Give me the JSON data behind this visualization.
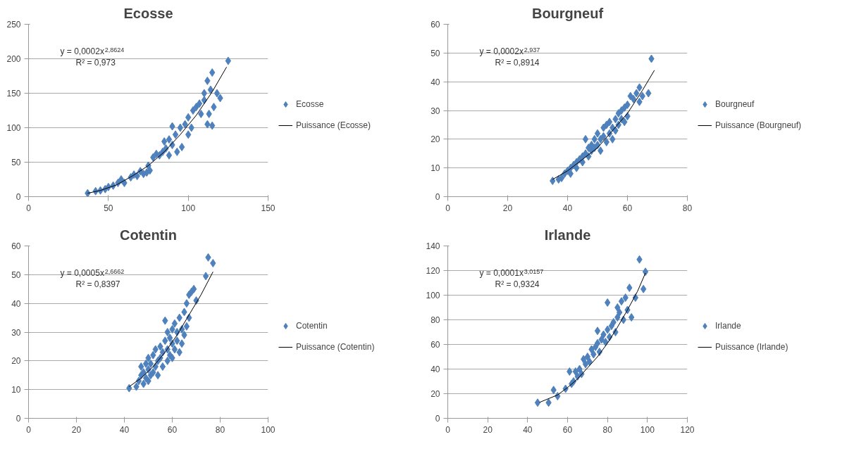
{
  "chart_data": [
    {
      "type": "scatter",
      "title": "Ecosse",
      "xlim": [
        0,
        150
      ],
      "xticks": [
        0,
        50,
        100,
        150
      ],
      "ylim": [
        0,
        250
      ],
      "yticks": [
        0,
        50,
        100,
        150,
        200,
        250
      ],
      "grid": "y",
      "legend": "right",
      "annotations": [
        "y = 0,0002x$^{2,8624}$",
        "R² = 0,973"
      ],
      "series": [
        {
          "name": "Ecosse",
          "color": "#4f81bd",
          "marker": "diamond",
          "x": [
            37,
            42,
            45,
            48,
            50,
            53,
            56,
            58,
            60,
            64,
            66,
            68,
            70,
            72,
            74,
            75,
            76,
            78,
            80,
            82,
            84,
            85,
            86,
            88,
            88,
            90,
            90,
            92,
            93,
            95,
            96,
            98,
            100,
            100,
            102,
            103,
            105,
            107,
            108,
            110,
            110,
            112,
            112,
            113,
            114,
            115,
            115,
            116,
            118,
            120,
            125
          ],
          "values": [
            5,
            8,
            9,
            11,
            14,
            16,
            20,
            25,
            20,
            28,
            32,
            30,
            37,
            33,
            35,
            45,
            38,
            57,
            62,
            60,
            65,
            80,
            70,
            83,
            60,
            102,
            75,
            90,
            65,
            100,
            72,
            105,
            115,
            90,
            100,
            125,
            130,
            135,
            120,
            150,
            140,
            168,
            105,
            120,
            155,
            180,
            103,
            130,
            150,
            143,
            197
          ]
        },
        {
          "name": "Puissance (Ecosse)",
          "type": "line",
          "color": "#000000",
          "marker": "none",
          "x": [
            37,
            45,
            55,
            65,
            75,
            85,
            95,
            105,
            115,
            124
          ],
          "values": [
            5,
            9,
            17,
            30,
            45,
            65,
            90,
            118,
            152,
            188
          ]
        }
      ]
    },
    {
      "type": "scatter",
      "title": "Bourgneuf",
      "xlim": [
        0,
        80
      ],
      "xticks": [
        0,
        20,
        40,
        60,
        80
      ],
      "ylim": [
        0,
        60
      ],
      "yticks": [
        0,
        10,
        20,
        30,
        40,
        50,
        60
      ],
      "grid": "y",
      "legend": "right",
      "annotations": [
        "y = 0,0002x$^{2,937}$",
        "R² = 0,8914"
      ],
      "series": [
        {
          "name": "Bourgneuf",
          "color": "#4f81bd",
          "marker": "diamond",
          "x": [
            35,
            37,
            38,
            39,
            40,
            41,
            41,
            42,
            43,
            43,
            44,
            45,
            45,
            46,
            46,
            47,
            47,
            48,
            48,
            49,
            49,
            50,
            50,
            51,
            51,
            52,
            52,
            53,
            53,
            54,
            54,
            55,
            55,
            56,
            56,
            57,
            57,
            58,
            58,
            59,
            59,
            60,
            60,
            61,
            62,
            63,
            64,
            64,
            65,
            67,
            68
          ],
          "values": [
            5.5,
            6,
            6.5,
            8,
            9,
            8,
            10,
            11,
            12,
            10,
            13,
            12,
            14,
            20,
            15,
            14,
            17,
            16,
            18,
            17,
            20,
            18,
            22,
            20,
            16,
            21,
            24,
            19,
            25,
            22,
            26,
            24,
            20,
            27,
            23,
            25,
            29,
            27,
            30,
            26,
            31,
            28,
            32,
            35,
            34,
            36,
            38,
            33,
            35,
            36,
            48
          ]
        },
        {
          "name": "Puissance (Bourgneuf)",
          "type": "line",
          "color": "#000000",
          "marker": "none",
          "x": [
            35,
            40,
            45,
            50,
            55,
            60,
            65,
            69
          ],
          "values": [
            6,
            9,
            13,
            17,
            23,
            29,
            37,
            44
          ]
        }
      ]
    },
    {
      "type": "scatter",
      "title": "Cotentin",
      "xlim": [
        0,
        100
      ],
      "xticks": [
        0,
        20,
        40,
        60,
        80,
        100
      ],
      "ylim": [
        0,
        60
      ],
      "yticks": [
        0,
        10,
        20,
        30,
        40,
        50,
        60
      ],
      "grid": "y",
      "legend": "right",
      "annotations": [
        "y = 0,0005x$^{2,6662}$",
        "R² = 0,8397"
      ],
      "series": [
        {
          "name": "Cotentin",
          "color": "#4f81bd",
          "marker": "diamond",
          "x": [
            42,
            45,
            46,
            47,
            47,
            48,
            48,
            49,
            49,
            50,
            50,
            50,
            51,
            51,
            52,
            52,
            53,
            53,
            54,
            54,
            55,
            55,
            56,
            56,
            57,
            57,
            58,
            58,
            58,
            59,
            59,
            60,
            60,
            60,
            61,
            61,
            62,
            62,
            63,
            63,
            64,
            64,
            65,
            65,
            66,
            66,
            67,
            67,
            68,
            69,
            70,
            74,
            75,
            77
          ],
          "values": [
            10.5,
            11,
            13,
            15,
            18,
            12,
            16,
            14,
            19,
            13,
            17,
            21,
            15,
            19,
            16,
            22,
            18,
            24,
            15,
            20,
            21,
            25,
            18,
            23,
            27,
            34,
            20,
            24,
            30,
            22,
            28,
            21,
            26,
            31,
            24,
            33,
            27,
            30,
            23,
            35,
            26,
            31,
            29,
            37,
            32,
            40,
            35,
            43,
            44,
            45,
            41,
            49.5,
            56,
            54
          ]
        },
        {
          "name": "Puissance (Cotentin)",
          "type": "line",
          "color": "#000000",
          "marker": "none",
          "x": [
            42,
            47,
            52,
            57,
            62,
            67,
            72,
            77
          ],
          "values": [
            11,
            14,
            18,
            23,
            29,
            36,
            43,
            51
          ]
        }
      ]
    },
    {
      "type": "scatter",
      "title": "Irlande",
      "xlim": [
        0,
        120
      ],
      "xticks": [
        0,
        20,
        40,
        60,
        80,
        100,
        120
      ],
      "ylim": [
        0,
        140
      ],
      "yticks": [
        0,
        20,
        40,
        60,
        80,
        100,
        120,
        140
      ],
      "grid": "y",
      "legend": "right",
      "annotations": [
        "y = 0,0001x$^{3,0157}$",
        "R² = 0,9324"
      ],
      "series": [
        {
          "name": "Irlande",
          "color": "#4f81bd",
          "marker": "diamond",
          "x": [
            45,
            50.5,
            53,
            55,
            59,
            61,
            62,
            63,
            64,
            65,
            66,
            67,
            68,
            69,
            70,
            71,
            72,
            73,
            74,
            75,
            75,
            76,
            77,
            78,
            79,
            80,
            80,
            81,
            82,
            83,
            84,
            85,
            85,
            86,
            87,
            88,
            89,
            90,
            91,
            92,
            94,
            96,
            98,
            99
          ],
          "values": [
            12.7,
            12.7,
            23,
            18,
            24,
            38,
            28,
            30,
            38,
            34,
            40,
            36,
            48,
            44,
            50,
            46,
            56,
            52,
            58,
            61,
            71,
            54,
            64,
            68,
            62,
            72,
            94,
            66,
            75,
            78,
            70,
            82,
            90,
            86,
            95,
            80,
            98,
            88,
            106,
            82,
            98,
            129,
            105,
            119
          ]
        },
        {
          "name": "Puissance (Irlande)",
          "type": "line",
          "color": "#000000",
          "marker": "none",
          "x": [
            46,
            55,
            60,
            65,
            70,
            75,
            80,
            85,
            90,
            95,
            99
          ],
          "values": [
            13,
            19,
            25,
            32,
            41,
            50,
            61,
            74,
            88,
            103,
            118
          ]
        }
      ]
    }
  ]
}
